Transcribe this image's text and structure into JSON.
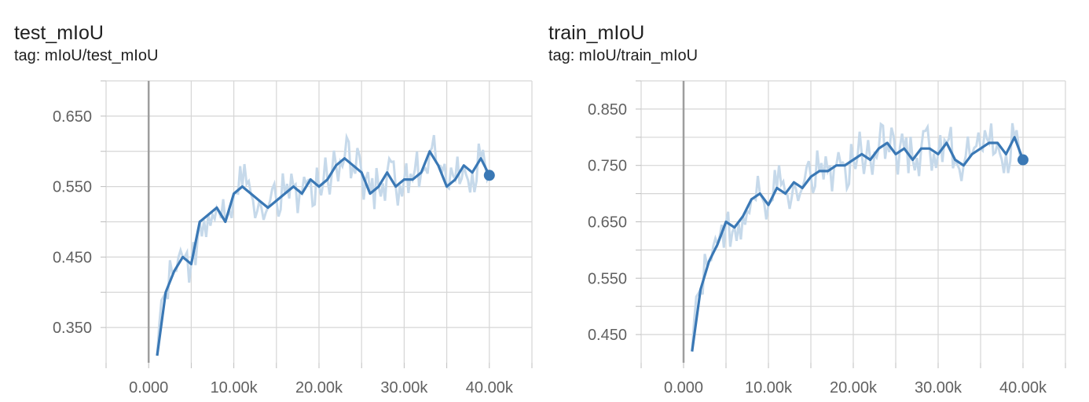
{
  "chart_data": [
    {
      "type": "line",
      "title": "test_mIoU",
      "subtitle": "tag: mIoU/test_mIoU",
      "xlim": [
        -5000,
        45000
      ],
      "ylim": [
        0.3,
        0.7
      ],
      "yticks": [
        0.35,
        0.45,
        0.55,
        0.65
      ],
      "ytick_labels": [
        "0.350",
        "0.450",
        "0.550",
        "0.650"
      ],
      "xticks": [
        0,
        10000,
        20000,
        30000,
        40000
      ],
      "xtick_labels": [
        "0.000",
        "10.00k",
        "20.00k",
        "30.00k",
        "40.00k"
      ],
      "grid": true,
      "colors": {
        "smoothed": "#3a78b5",
        "raw": "#c6d9ea",
        "zero_line": "#9e9e9e",
        "grid": "#d6d6d6"
      },
      "series": [
        {
          "x": [
            1000,
            2000,
            3000,
            4000,
            5000,
            6000,
            7000,
            8000,
            9000,
            10000,
            11000,
            12000,
            13000,
            14000,
            15000,
            16000,
            17000,
            18000,
            19000,
            20000,
            21000,
            22000,
            23000,
            24000,
            25000,
            26000,
            27000,
            28000,
            29000,
            30000,
            31000,
            32000,
            33000,
            34000,
            35000,
            36000,
            37000,
            38000,
            39000,
            40000
          ],
          "y": [
            0.31,
            0.4,
            0.43,
            0.45,
            0.44,
            0.5,
            0.51,
            0.52,
            0.5,
            0.54,
            0.55,
            0.54,
            0.53,
            0.52,
            0.53,
            0.54,
            0.55,
            0.54,
            0.56,
            0.55,
            0.56,
            0.58,
            0.59,
            0.58,
            0.57,
            0.54,
            0.55,
            0.57,
            0.55,
            0.56,
            0.56,
            0.57,
            0.6,
            0.58,
            0.55,
            0.56,
            0.58,
            0.57,
            0.59,
            0.566
          ]
        }
      ]
    },
    {
      "type": "line",
      "title": "train_mIoU",
      "subtitle": "tag: mIoU/train_mIoU",
      "xlim": [
        -5000,
        45000
      ],
      "ylim": [
        0.4,
        0.9
      ],
      "yticks": [
        0.45,
        0.55,
        0.65,
        0.75,
        0.85
      ],
      "ytick_labels": [
        "0.450",
        "0.550",
        "0.650",
        "0.750",
        "0.850"
      ],
      "xticks": [
        0,
        10000,
        20000,
        30000,
        40000
      ],
      "xtick_labels": [
        "0.000",
        "10.00k",
        "20.00k",
        "30.00k",
        "40.00k"
      ],
      "grid": true,
      "colors": {
        "smoothed": "#3a78b5",
        "raw": "#c6d9ea",
        "zero_line": "#9e9e9e",
        "grid": "#d6d6d6"
      },
      "series": [
        {
          "x": [
            1000,
            2000,
            3000,
            4000,
            5000,
            6000,
            7000,
            8000,
            9000,
            10000,
            11000,
            12000,
            13000,
            14000,
            15000,
            16000,
            17000,
            18000,
            19000,
            20000,
            21000,
            22000,
            23000,
            24000,
            25000,
            26000,
            27000,
            28000,
            29000,
            30000,
            31000,
            32000,
            33000,
            34000,
            35000,
            36000,
            37000,
            38000,
            39000,
            40000
          ],
          "y": [
            0.42,
            0.53,
            0.58,
            0.61,
            0.65,
            0.64,
            0.66,
            0.69,
            0.7,
            0.68,
            0.71,
            0.7,
            0.72,
            0.71,
            0.73,
            0.74,
            0.74,
            0.75,
            0.75,
            0.76,
            0.77,
            0.76,
            0.78,
            0.79,
            0.77,
            0.78,
            0.76,
            0.78,
            0.78,
            0.77,
            0.79,
            0.76,
            0.75,
            0.77,
            0.78,
            0.79,
            0.79,
            0.77,
            0.8,
            0.76
          ]
        }
      ]
    }
  ]
}
